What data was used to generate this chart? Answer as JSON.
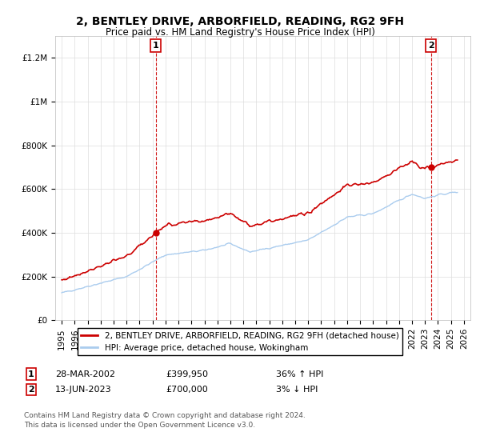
{
  "title": "2, BENTLEY DRIVE, ARBORFIELD, READING, RG2 9FH",
  "subtitle": "Price paid vs. HM Land Registry's House Price Index (HPI)",
  "ylabel_ticks": [
    "£0",
    "£200K",
    "£400K",
    "£600K",
    "£800K",
    "£1M",
    "£1.2M"
  ],
  "ytick_vals": [
    0,
    200000,
    400000,
    600000,
    800000,
    1000000,
    1200000
  ],
  "ylim": [
    0,
    1300000
  ],
  "xlim_start": 1994.5,
  "xlim_end": 2026.5,
  "legend_entries": [
    "2, BENTLEY DRIVE, ARBORFIELD, READING, RG2 9FH (detached house)",
    "HPI: Average price, detached house, Wokingham"
  ],
  "line1_color": "#cc0000",
  "line2_color": "#aaccee",
  "vline_color": "#cc0000",
  "annotation1": {
    "label": "1",
    "date": 2002.24,
    "price": 399950,
    "text1": "28-MAR-2002",
    "text2": "£399,950",
    "text3": "36% ↑ HPI"
  },
  "annotation2": {
    "label": "2",
    "date": 2023.45,
    "price": 700000,
    "text1": "13-JUN-2023",
    "text2": "£700,000",
    "text3": "3% ↓ HPI"
  },
  "footer1": "Contains HM Land Registry data © Crown copyright and database right 2024.",
  "footer2": "This data is licensed under the Open Government Licence v3.0.",
  "grid_color": "#dddddd",
  "title_fontsize": 10,
  "subtitle_fontsize": 8.5,
  "tick_fontsize": 7.5,
  "legend_fontsize": 7.5,
  "annot_fontsize": 8,
  "footer_fontsize": 6.5
}
